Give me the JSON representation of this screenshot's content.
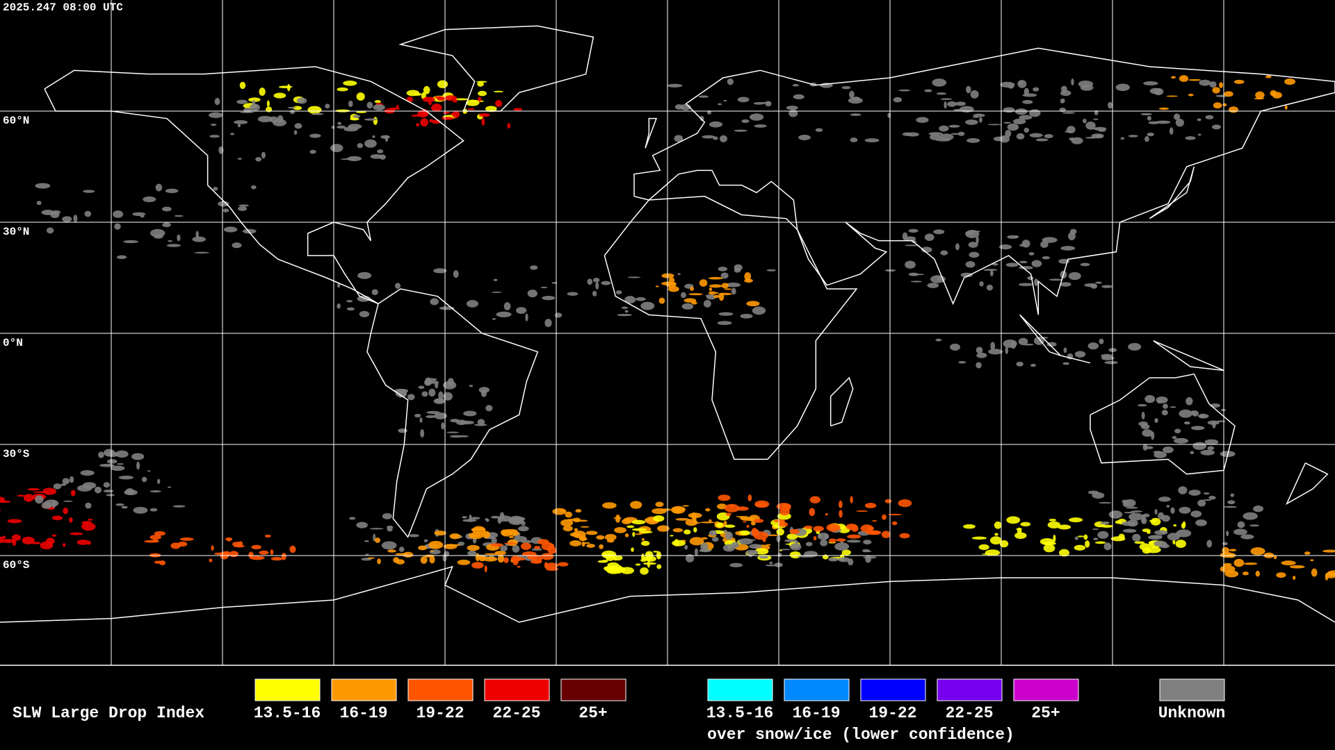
{
  "header": {
    "timestamp": "2025.247 08:00 UTC"
  },
  "map": {
    "lat_labels": [
      "60°N",
      "30°N",
      "0°N",
      "30°S",
      "60°S"
    ]
  },
  "legend": {
    "title": "SLW Large Drop Index",
    "standard": [
      {
        "label": "13.5-16",
        "color": "#ffff00"
      },
      {
        "label": "16-19",
        "color": "#ff9900"
      },
      {
        "label": "19-22",
        "color": "#ff5500"
      },
      {
        "label": "22-25",
        "color": "#ee0000"
      },
      {
        "label": "25+",
        "color": "#660000"
      }
    ],
    "snow_ice": [
      {
        "label": "13.5-16",
        "color": "#00ffff"
      },
      {
        "label": "16-19",
        "color": "#0088ff"
      },
      {
        "label": "19-22",
        "color": "#0000ff"
      },
      {
        "label": "22-25",
        "color": "#7700ee"
      },
      {
        "label": "25+",
        "color": "#cc00cc"
      }
    ],
    "snow_ice_caption": "over snow/ice (lower confidence)",
    "unknown": {
      "label": "Unknown",
      "color": "#808080"
    }
  }
}
